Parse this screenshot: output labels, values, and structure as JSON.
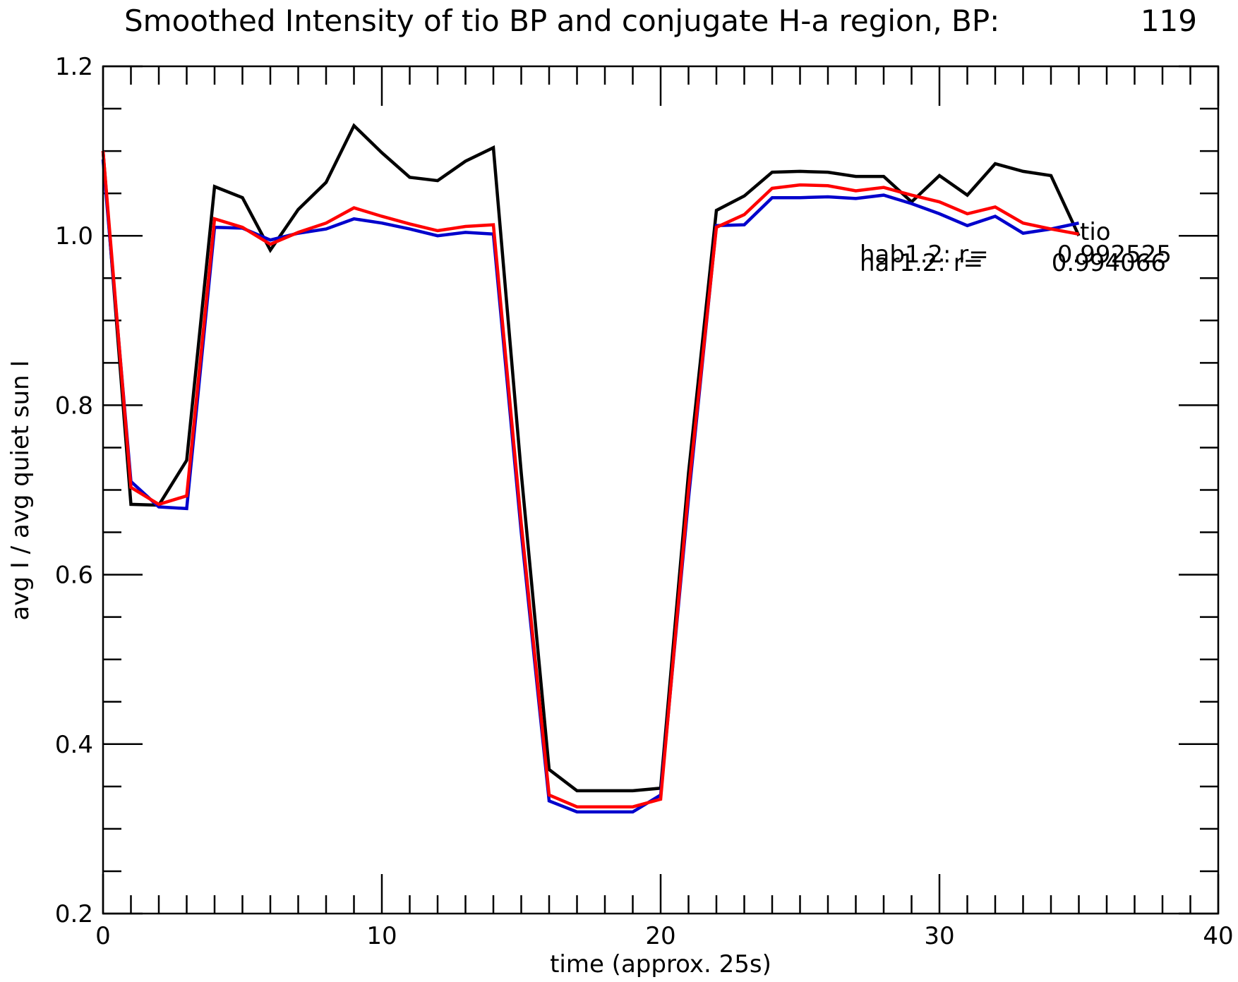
{
  "chart_data": {
    "type": "line",
    "title": "Smoothed Intensity of tio BP and conjugate H-a region, BP:",
    "title_value": "119",
    "xlabel": "time (approx. 25s)",
    "ylabel": "avg I / avg quiet sun I",
    "xlim": [
      0,
      40
    ],
    "ylim": [
      0.2,
      1.2
    ],
    "x_ticks": [
      0,
      10,
      20,
      30,
      40
    ],
    "x_tick_labels": [
      "0",
      "10",
      "20",
      "30",
      "40"
    ],
    "y_ticks": [
      0.2,
      0.4,
      0.6,
      0.8,
      1.0,
      1.2
    ],
    "y_tick_labels": [
      "0.2",
      "0.4",
      "0.6",
      "0.8",
      "1.0",
      "1.2"
    ],
    "x_minor_step": 1,
    "y_minor_step": 0.05,
    "x": [
      0,
      1,
      2,
      3,
      4,
      5,
      6,
      7,
      8,
      9,
      10,
      11,
      12,
      13,
      14,
      15,
      16,
      17,
      18,
      19,
      20,
      21,
      22,
      23,
      24,
      25,
      26,
      27,
      28,
      29,
      30,
      31,
      32,
      33,
      34,
      35
    ],
    "series": [
      {
        "name": "tio",
        "color": "#000000",
        "values": [
          1.1,
          0.683,
          0.682,
          0.735,
          1.058,
          1.045,
          0.983,
          1.031,
          1.063,
          1.13,
          1.098,
          1.069,
          1.065,
          1.088,
          1.104,
          0.72,
          0.37,
          0.345,
          0.345,
          0.345,
          0.348,
          0.72,
          1.03,
          1.047,
          1.075,
          1.076,
          1.075,
          1.07,
          1.07,
          1.04,
          1.071,
          1.048,
          1.085,
          1.076,
          1.071,
          1.0
        ]
      },
      {
        "name": "hab1.2",
        "color": "#0000cc",
        "values": [
          1.09,
          0.71,
          0.68,
          0.678,
          1.01,
          1.009,
          0.995,
          1.003,
          1.008,
          1.02,
          1.015,
          1.008,
          1.0,
          1.004,
          1.002,
          0.65,
          0.333,
          0.32,
          0.32,
          0.32,
          0.34,
          0.69,
          1.012,
          1.013,
          1.045,
          1.045,
          1.046,
          1.044,
          1.048,
          1.038,
          1.026,
          1.012,
          1.023,
          1.003,
          1.008,
          1.015
        ]
      },
      {
        "name": "har1.2",
        "color": "#ff0000",
        "values": [
          1.1,
          0.703,
          0.683,
          0.693,
          1.02,
          1.01,
          0.99,
          1.004,
          1.015,
          1.033,
          1.023,
          1.014,
          1.006,
          1.011,
          1.013,
          0.66,
          0.34,
          0.326,
          0.326,
          0.326,
          0.335,
          0.7,
          1.01,
          1.025,
          1.056,
          1.06,
          1.059,
          1.053,
          1.057,
          1.048,
          1.04,
          1.026,
          1.034,
          1.015,
          1.008,
          1.002
        ]
      }
    ],
    "annotations": {
      "series_label": "tio",
      "line1_label": "hab1.2: r=",
      "line1_value": "0.992525",
      "line2_label": "har1.2: r=",
      "line2_value": "0.994066"
    }
  }
}
